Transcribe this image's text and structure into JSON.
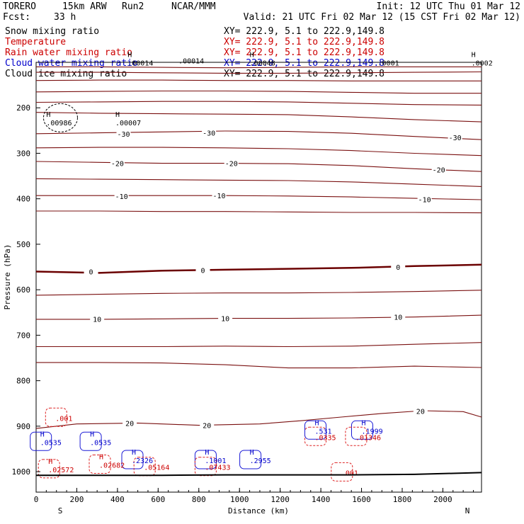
{
  "header": {
    "model_name": "TORERO",
    "resolution": "15km ARW",
    "run": "Run2",
    "org": "NCAR/MMM",
    "init": "Init: 12 UTC Thu 01 Mar 12",
    "fcst_label": "Fcst:",
    "fcst_value": "33 h",
    "valid": "Valid: 21 UTC Fri 02 Mar 12 (15 CST Fri 02 Mar 12)"
  },
  "legend": [
    {
      "label": "Snow mixing ratio",
      "xy": "XY= 222.9,  5.1 to 222.9,149.8",
      "color": "#000000"
    },
    {
      "label": "Temperature",
      "xy": "XY= 222.9,  5.1 to 222.9,149.8",
      "color": "#cc0000"
    },
    {
      "label": "Rain water mixing ratio",
      "xy": "XY= 222.9,  5.1 to 222.9,149.8",
      "color": "#cc0000"
    },
    {
      "label": "Cloud water mixing ratio",
      "xy": "XY= 222.9,  5.1 to 222.9,149.8",
      "color": "#0000cc"
    },
    {
      "label": "Cloud ice mixing ratio",
      "xy": "XY= 222.9,  5.1 to 222.9,149.8",
      "color": "#000000"
    }
  ],
  "colors": {
    "temperature": "#7a1010",
    "zero_isotherm": "#6b0000",
    "rain": "#dd2222",
    "cloud_water": "#1a1ad6",
    "ice": "#000000",
    "terrain": "#000000"
  },
  "chart_data": {
    "type": "cross-section contour",
    "xlabel": "Distance (km)",
    "ylabel": "Pressure (hPa)",
    "xlim": [
      0,
      2190
    ],
    "ylim": [
      1045,
      100
    ],
    "x_ticks": [
      0,
      200,
      400,
      600,
      800,
      1000,
      1200,
      1400,
      1600,
      1800,
      2000
    ],
    "y_ticks": [
      200,
      300,
      400,
      500,
      600,
      700,
      800,
      900,
      1000
    ],
    "end_labels": {
      "left": "S",
      "right": "N"
    },
    "temperature_contours": [
      {
        "value": -60,
        "p": [
          110,
          110,
          111,
          112,
          111,
          110,
          110,
          110
        ]
      },
      {
        "value": -55,
        "p": [
          122,
          122,
          123,
          124,
          124,
          123,
          122,
          121
        ]
      },
      {
        "value": -50,
        "p": [
          140,
          139,
          139,
          140,
          140,
          141,
          141,
          141
        ]
      },
      {
        "value": -45,
        "p": [
          165,
          164,
          163,
          163,
          164,
          166,
          168,
          168
        ]
      },
      {
        "value": -40,
        "p": [
          188,
          187,
          186,
          186,
          187,
          190,
          193,
          194
        ]
      },
      {
        "value": -35,
        "p": [
          210,
          212,
          213,
          214,
          215,
          220,
          226,
          231
        ]
      },
      {
        "value": -30,
        "p": [
          257,
          255,
          253,
          251,
          252,
          256,
          263,
          270
        ]
      },
      {
        "value": -25,
        "p": [
          288,
          287,
          287,
          288,
          290,
          294,
          300,
          305
        ]
      },
      {
        "value": -20,
        "p": [
          318,
          320,
          322,
          322,
          323,
          327,
          334,
          340
        ]
      },
      {
        "value": -15,
        "p": [
          356,
          357,
          358,
          359,
          360,
          363,
          368,
          373
        ]
      },
      {
        "value": -10,
        "p": [
          393,
          393,
          393,
          393,
          394,
          396,
          399,
          402
        ]
      },
      {
        "value": -5,
        "p": [
          427,
          427,
          428,
          428,
          429,
          430,
          430,
          431
        ]
      },
      {
        "value": 0,
        "p": [
          560,
          563,
          558,
          556,
          554,
          552,
          548,
          545
        ]
      },
      {
        "value": 5,
        "p": [
          612,
          610,
          608,
          607,
          607,
          606,
          604,
          601
        ]
      },
      {
        "value": 10,
        "p": [
          665,
          665,
          664,
          663,
          663,
          662,
          660,
          656
        ]
      },
      {
        "value": 15,
        "p": [
          725,
          725,
          725,
          724,
          725,
          724,
          720,
          716
        ]
      },
      {
        "value": 20,
        "p": [
          760,
          760,
          761,
          765,
          772,
          772,
          768,
          771
        ]
      }
    ],
    "temperature_x": [
      0,
      310,
      620,
      930,
      1240,
      1550,
      1860,
      2190
    ],
    "temperature_labels": [
      {
        "value": "-30",
        "x": 430,
        "p": 257
      },
      {
        "value": "-30",
        "x": 850,
        "p": 255
      },
      {
        "value": "-30",
        "x": 2060,
        "p": 265
      },
      {
        "value": "-20",
        "x": 400,
        "p": 322
      },
      {
        "value": "-20",
        "x": 960,
        "p": 322
      },
      {
        "value": "-20",
        "x": 1980,
        "p": 336
      },
      {
        "value": "-10",
        "x": 420,
        "p": 394
      },
      {
        "value": "-10",
        "x": 900,
        "p": 393
      },
      {
        "value": "-10",
        "x": 1910,
        "p": 401
      },
      {
        "value": "0",
        "x": 270,
        "p": 560
      },
      {
        "value": "0",
        "x": 820,
        "p": 557
      },
      {
        "value": "0",
        "x": 1780,
        "p": 550
      },
      {
        "value": "10",
        "x": 300,
        "p": 664
      },
      {
        "value": "10",
        "x": 930,
        "p": 663
      },
      {
        "value": "10",
        "x": 1780,
        "p": 660
      },
      {
        "value": "20",
        "x": 460,
        "p": 893
      },
      {
        "value": "20",
        "x": 840,
        "p": 898
      },
      {
        "value": "20",
        "x": 1890,
        "p": 867
      }
    ],
    "extrema_labels": [
      {
        "h": "H",
        "v": ".00014",
        "x": 450,
        "p": 101,
        "color": "#000000"
      },
      {
        "h": "",
        "v": ".00014",
        "x": 700,
        "p": 96,
        "color": "#000000"
      },
      {
        "h": "H",
        "v": ".00048",
        "x": 1050,
        "p": 101,
        "color": "#000000"
      },
      {
        "h": "",
        "v": ".0001",
        "x": 1680,
        "p": 101,
        "color": "#000000"
      },
      {
        "h": "H",
        "v": ".0002",
        "x": 2140,
        "p": 101,
        "color": "#000000"
      },
      {
        "h": "H",
        "v": ".00986",
        "x": 50,
        "p": 232,
        "color": "#000000"
      },
      {
        "h": "H",
        "v": ".00007",
        "x": 390,
        "p": 232,
        "color": "#000000"
      },
      {
        "h": "",
        "v": ".001",
        "x": 95,
        "p": 882,
        "color": "#cc0000"
      },
      {
        "h": "H",
        "v": ".0535",
        "x": 20,
        "p": 935,
        "color": "#0000cc"
      },
      {
        "h": "H",
        "v": ".0535",
        "x": 265,
        "p": 935,
        "color": "#0000cc"
      },
      {
        "h": "H",
        "v": ".02682",
        "x": 310,
        "p": 985,
        "color": "#cc0000"
      },
      {
        "h": "H",
        "v": ".2326",
        "x": 470,
        "p": 975,
        "color": "#0000cc"
      },
      {
        "h": "",
        "v": ".05164",
        "x": 530,
        "p": 990,
        "color": "#cc0000"
      },
      {
        "h": "H",
        "v": ".1001",
        "x": 830,
        "p": 975,
        "color": "#0000cc"
      },
      {
        "h": "",
        "v": ".07433",
        "x": 830,
        "p": 990,
        "color": "#cc0000"
      },
      {
        "h": "H",
        "v": ".2955",
        "x": 1050,
        "p": 975,
        "color": "#0000cc"
      },
      {
        "h": "H",
        "v": ".02572",
        "x": 60,
        "p": 995,
        "color": "#cc0000"
      },
      {
        "h": "",
        "v": ".0335",
        "x": 1370,
        "p": 924,
        "color": "#cc0000"
      },
      {
        "h": "H",
        "v": ".531",
        "x": 1370,
        "p": 910,
        "color": "#0000cc"
      },
      {
        "h": "H",
        "v": ".1999",
        "x": 1600,
        "p": 910,
        "color": "#0000cc"
      },
      {
        "h": "",
        "v": ".01346",
        "x": 1570,
        "p": 924,
        "color": "#cc0000"
      },
      {
        "h": "",
        "v": ".001",
        "x": 1500,
        "p": 1002,
        "color": "#cc0000"
      }
    ],
    "terrain_p": [
      1008,
      1008,
      1008,
      1007,
      1007,
      1007,
      1006,
      1002
    ]
  }
}
